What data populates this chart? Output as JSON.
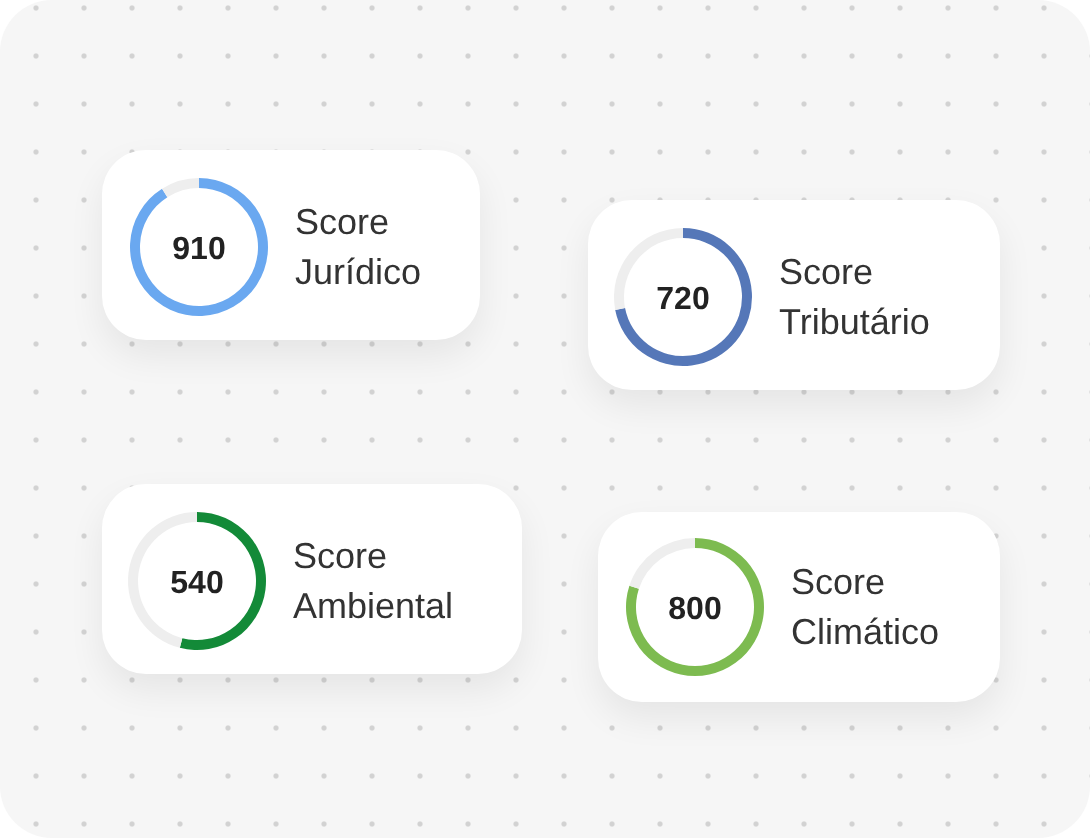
{
  "chart_data": [
    {
      "type": "donut",
      "title": "Score Jurídico",
      "categories": [
        null,
        null
      ],
      "values": [
        910,
        90
      ],
      "colors": [
        "#6aa8f0",
        "#eeeeee"
      ],
      "value_labels": [
        "910",
        null
      ]
    },
    {
      "type": "donut",
      "title": "Score Tributário",
      "categories": [
        null,
        null
      ],
      "values": [
        720,
        280
      ],
      "colors": [
        "#5577b8",
        "#eeeeee"
      ],
      "value_labels": [
        "720",
        null
      ]
    },
    {
      "type": "donut",
      "title": "Score Ambiental",
      "categories": [
        null,
        null
      ],
      "values": [
        540,
        460
      ],
      "colors": [
        "#138a38",
        "#eeeeee"
      ],
      "value_labels": [
        "540",
        null
      ]
    },
    {
      "type": "donut",
      "title": "Score Climático",
      "categories": [
        null,
        null
      ],
      "values": [
        800,
        200
      ],
      "colors": [
        "#7dbb50",
        "#eeeeee"
      ],
      "value_labels": [
        "800",
        null
      ]
    }
  ]
}
